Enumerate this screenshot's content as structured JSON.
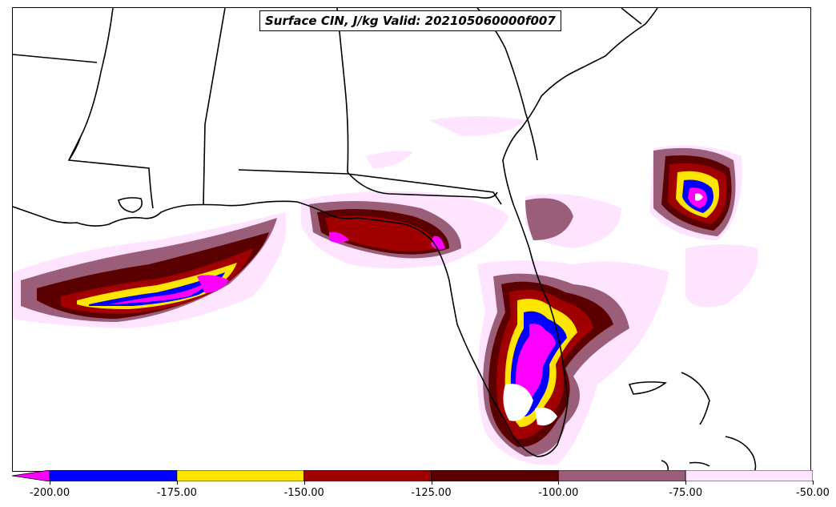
{
  "title": "Surface CIN, J/kg Valid: 202105060000f007",
  "colorbar": {
    "bins": [
      {
        "from": -200,
        "color": "#ff00ff",
        "extend": true
      },
      {
        "from": -200,
        "to": -175,
        "color": "#0000ff"
      },
      {
        "from": -175,
        "to": -150,
        "color": "#ffe600"
      },
      {
        "from": -150,
        "to": -125,
        "color": "#a00000"
      },
      {
        "from": -125,
        "to": -100,
        "color": "#5a0000"
      },
      {
        "from": -100,
        "to": -75,
        "color": "#9a5e78"
      },
      {
        "from": -75,
        "to": -50,
        "color": "#ffe4ff"
      }
    ],
    "ticks": [
      "-200.00",
      "-175.00",
      "-150.00",
      "-125.00",
      "-100.00",
      "-75.00",
      "-50.00"
    ]
  },
  "map": {
    "region": "Southeastern United States and Gulf of Mexico",
    "field": "Surface CIN",
    "units": "J/kg"
  }
}
